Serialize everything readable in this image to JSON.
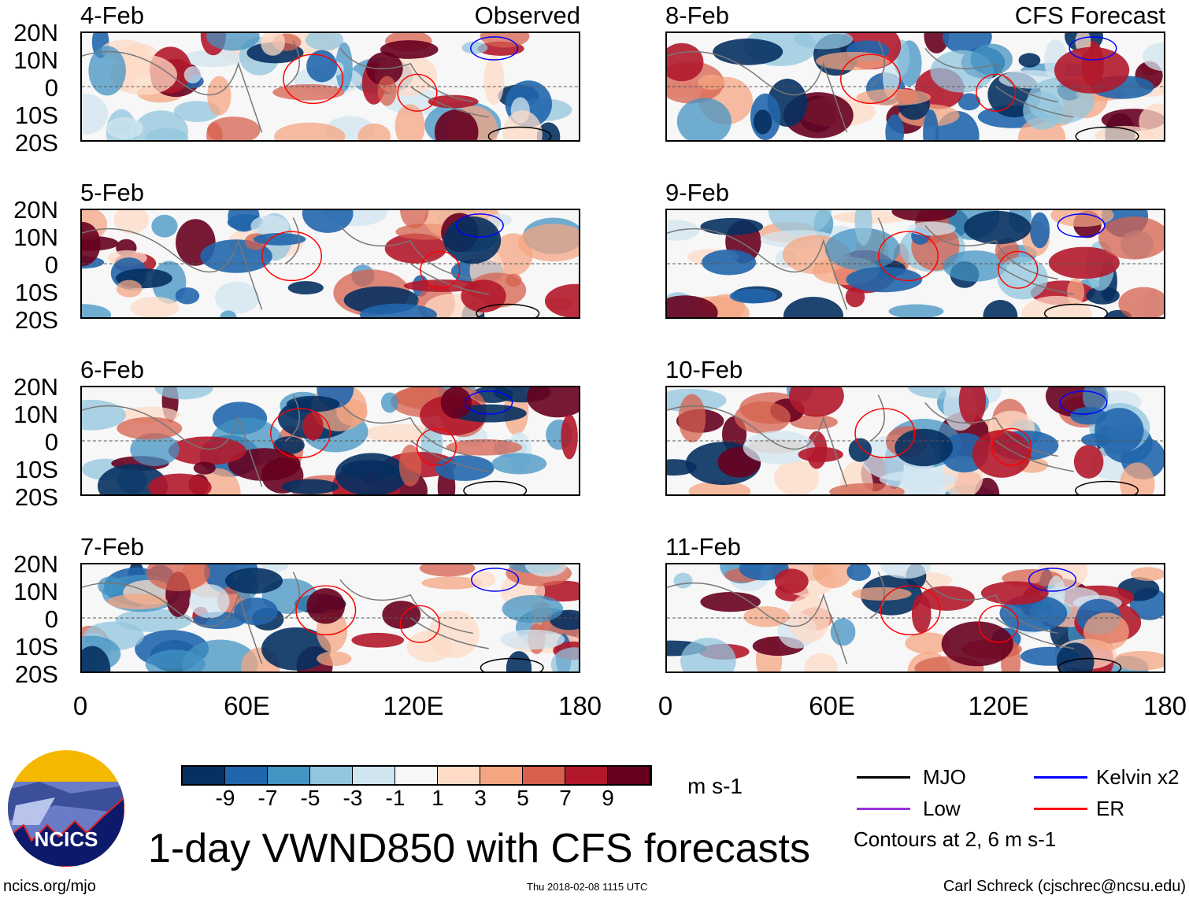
{
  "columns": [
    {
      "header": "Observed",
      "dates": [
        "4-Feb",
        "5-Feb",
        "6-Feb",
        "7-Feb"
      ]
    },
    {
      "header": "CFS Forecast",
      "dates": [
        "8-Feb",
        "9-Feb",
        "10-Feb",
        "11-Feb"
      ]
    }
  ],
  "lat_labels": [
    "20N",
    "10N",
    "0",
    "10S",
    "20S"
  ],
  "lon_labels": [
    "0",
    "60E",
    "120E",
    "180"
  ],
  "colorbar": {
    "colors": [
      "#053061",
      "#2166ac",
      "#4393c3",
      "#92c5de",
      "#d1e5f0",
      "#f7f7f7",
      "#fddbc7",
      "#f4a582",
      "#d6604d",
      "#b2182b",
      "#67001f"
    ],
    "labels": [
      "-9",
      "-7",
      "-5",
      "-3",
      "-1",
      "1",
      "3",
      "5",
      "7",
      "9"
    ],
    "units": "m s-1"
  },
  "legend": {
    "items": [
      {
        "label": "MJO",
        "color": "#000000"
      },
      {
        "label": "Kelvin x2",
        "color": "#0000ff"
      },
      {
        "label": "Low",
        "color": "#9933dd"
      },
      {
        "label": "ER",
        "color": "#ff0000"
      }
    ],
    "note": "Contours at 2, 6 m s-1"
  },
  "title": "1-day VWND850 with CFS forecasts",
  "logo": {
    "text": "NCICS"
  },
  "footer": {
    "left": "ncics.org/mjo",
    "center": "Thu 2018-02-08 1115 UTC",
    "right": "Carl Schreck (cjschrec@ncsu.edu)"
  }
}
